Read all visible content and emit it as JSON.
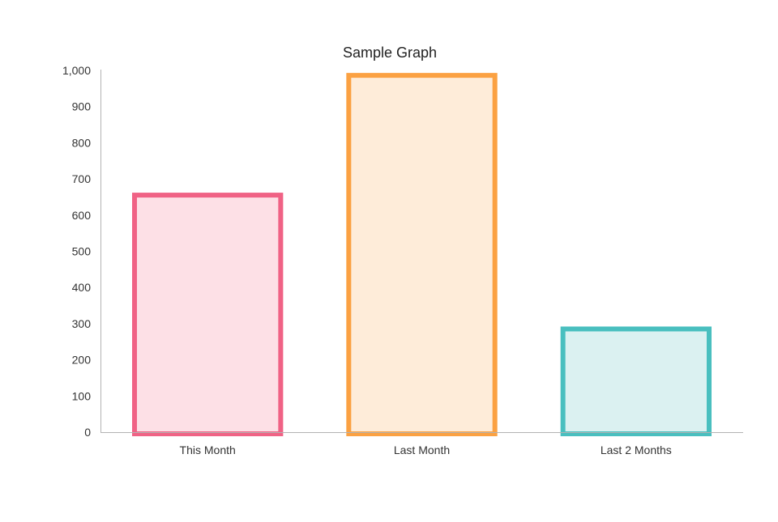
{
  "chart_data": {
    "type": "bar",
    "title": "Sample Graph",
    "xlabel": "",
    "ylabel": "",
    "categories": [
      "This Month",
      "Last Month",
      "Last 2 Months"
    ],
    "values": [
      662,
      993,
      292
    ],
    "ylim": [
      0,
      1000
    ],
    "yticks": [
      0,
      100,
      200,
      300,
      400,
      500,
      600,
      700,
      800,
      900,
      1000
    ],
    "ytick_labels": [
      "0",
      "100",
      "200",
      "300",
      "400",
      "500",
      "600",
      "700",
      "800",
      "900",
      "1,000"
    ],
    "grid": false,
    "legend": "none",
    "colors": {
      "border": [
        "#f06285",
        "#fba142",
        "#49bfbf"
      ],
      "fill": [
        "#fde0e6",
        "#feecd9",
        "#dbf1f1"
      ]
    }
  }
}
